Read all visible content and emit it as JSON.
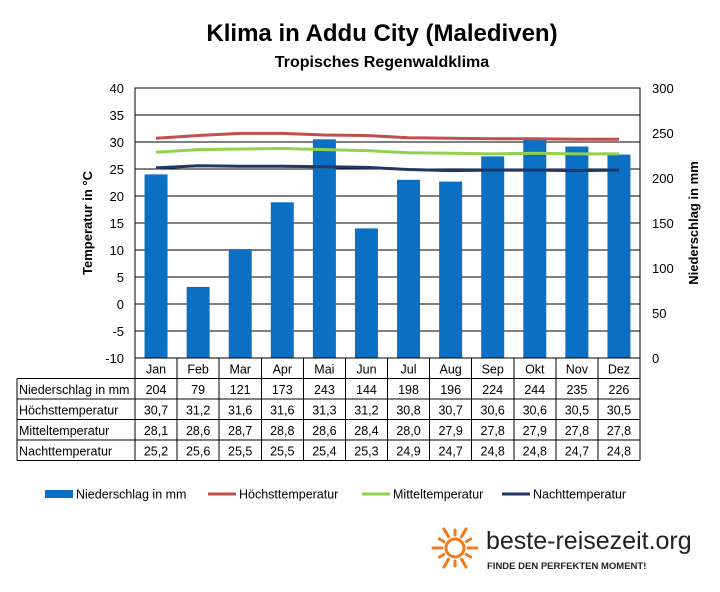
{
  "chart_data": {
    "type": "bar",
    "title": "Klima in Addu City (Malediven)",
    "subtitle": "Tropisches  Regenwaldklima",
    "categories": [
      "Jan",
      "Feb",
      "Mar",
      "Apr",
      "Mai",
      "Jun",
      "Jul",
      "Aug",
      "Sep",
      "Okt",
      "Nov",
      "Dez"
    ],
    "y_left": {
      "label": "Temperatur in °C",
      "min": -10,
      "max": 40,
      "step": 5
    },
    "y_right": {
      "label": "Niederschlag in mm",
      "min": 0,
      "max": 300,
      "step": 50
    },
    "grid": "horizontal",
    "legend_position": "bottom",
    "series": [
      {
        "name": "Niederschlag in mm",
        "type": "bar",
        "axis": "right",
        "color": "#0b6fc3",
        "values": [
          204,
          79,
          121,
          173,
          243,
          144,
          198,
          196,
          224,
          244,
          235,
          226
        ],
        "labels": [
          "204",
          "79",
          "121",
          "173",
          "243",
          "144",
          "198",
          "196",
          "224",
          "244",
          "235",
          "226"
        ]
      },
      {
        "name": "Höchsttemperatur",
        "type": "line",
        "axis": "left",
        "color": "#c0504d",
        "values": [
          30.7,
          31.2,
          31.6,
          31.6,
          31.3,
          31.2,
          30.8,
          30.7,
          30.6,
          30.6,
          30.5,
          30.5
        ],
        "labels": [
          "30,7",
          "31,2",
          "31,6",
          "31,6",
          "31,3",
          "31,2",
          "30,8",
          "30,7",
          "30,6",
          "30,6",
          "30,5",
          "30,5"
        ]
      },
      {
        "name": "Mitteltemperatur",
        "type": "line",
        "axis": "left",
        "color": "#92d050",
        "values": [
          28.1,
          28.6,
          28.7,
          28.8,
          28.6,
          28.4,
          28.0,
          27.9,
          27.8,
          27.9,
          27.8,
          27.8
        ],
        "labels": [
          "28,1",
          "28,6",
          "28,7",
          "28,8",
          "28,6",
          "28,4",
          "28,0",
          "27,9",
          "27,8",
          "27,9",
          "27,8",
          "27,8"
        ]
      },
      {
        "name": "Nachttemperatur",
        "type": "line",
        "axis": "left",
        "color": "#1f3864",
        "values": [
          25.2,
          25.6,
          25.5,
          25.5,
          25.4,
          25.3,
          24.9,
          24.7,
          24.8,
          24.8,
          24.7,
          24.8
        ],
        "labels": [
          "25,2",
          "25,6",
          "25,5",
          "25,5",
          "25,4",
          "25,3",
          "24,9",
          "24,7",
          "24,8",
          "24,8",
          "24,7",
          "24,8"
        ]
      }
    ]
  },
  "brand": {
    "name": "beste-reisezeit.org",
    "tagline": "FINDE DEN PERFEKTEN MOMENT!",
    "sun_color": "#f07a1c"
  }
}
